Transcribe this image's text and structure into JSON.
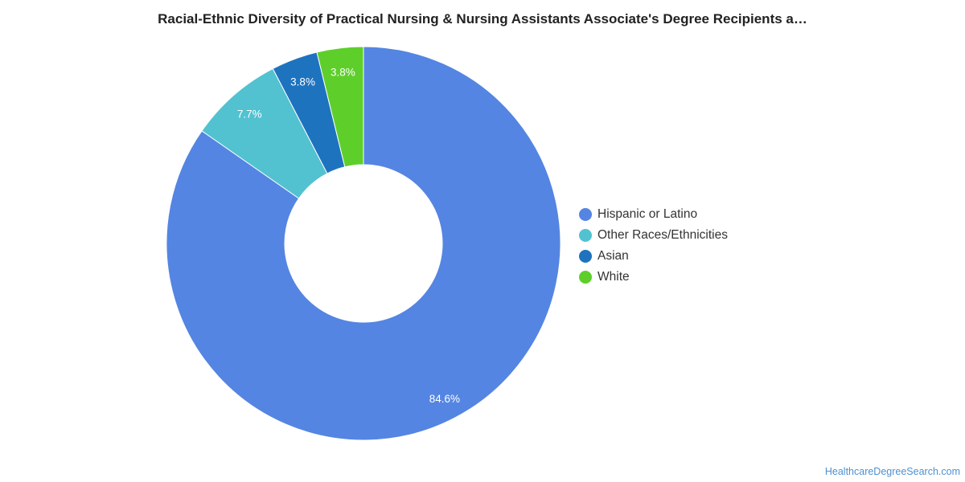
{
  "chart_data": {
    "type": "pie",
    "title": "Racial-Ethnic Diversity of Practical Nursing & Nursing Assistants Associate's Degree Recipients a…",
    "categories": [
      "Hispanic or Latino",
      "Other Races/Ethnicities",
      "Asian",
      "White"
    ],
    "values": [
      84.6,
      7.7,
      3.8,
      3.8
    ],
    "value_labels": [
      "84.6%",
      "7.7%",
      "3.8%",
      "3.8%"
    ],
    "colors": [
      "#5485e2",
      "#52c2d0",
      "#1e73bf",
      "#5ecf2a"
    ],
    "donut": true,
    "legend": "right"
  },
  "source": {
    "label": "HealthcareDegreeSearch.com"
  }
}
